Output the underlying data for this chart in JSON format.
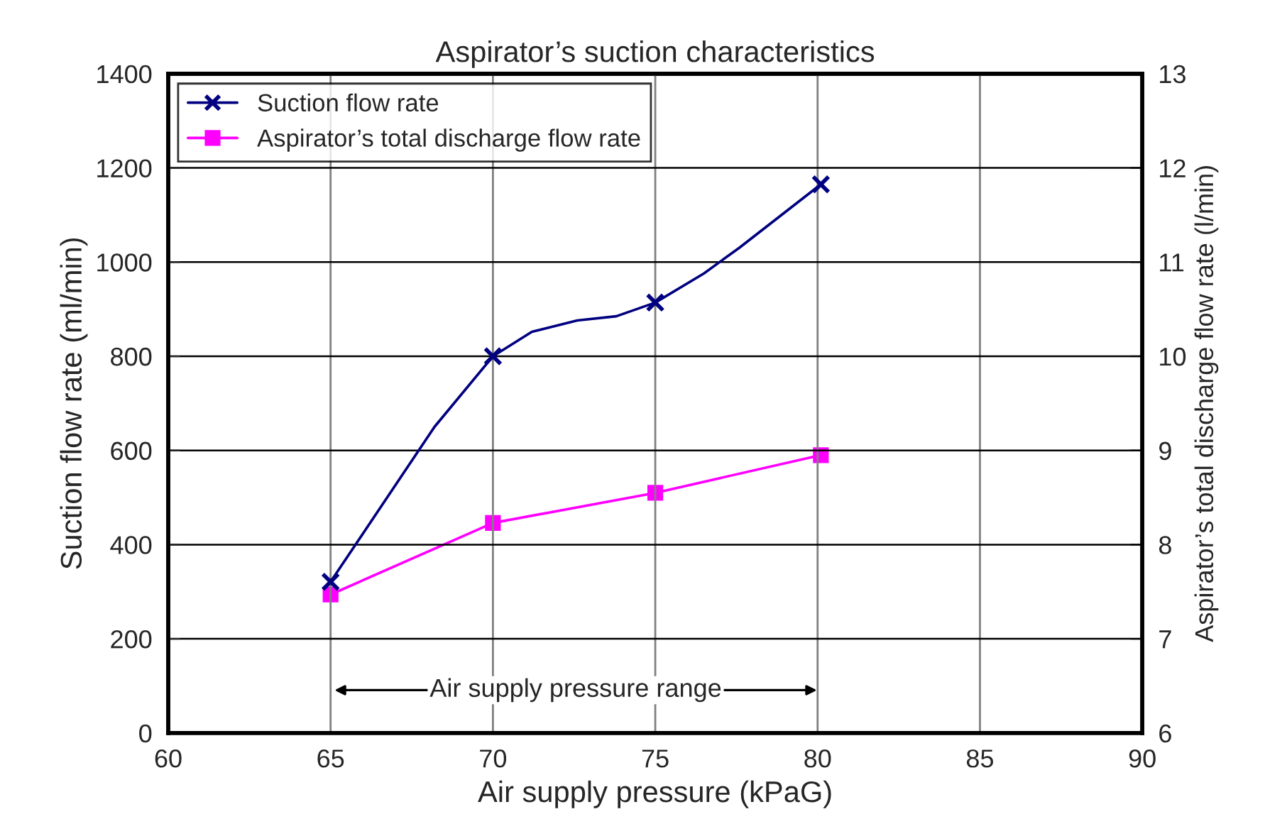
{
  "chart_data": {
    "type": "line",
    "title": "Aspirator’s suction characteristics",
    "xlabel": "Air supply pressure (kPaG)",
    "ylabel": "Suction flow rate (ml/min)",
    "y2label": "Aspirator’s total discharge flow rate (l/min)",
    "series": [
      {
        "color": "#000080",
        "marker": "none",
        "x": [
          65,
          68.2,
          70,
          71.2,
          72.6,
          73.8,
          75,
          76.5,
          77.6,
          80.1
        ],
        "values": [
          321,
          650,
          800,
          852,
          876,
          885,
          914,
          976,
          1031,
          1165
        ]
      },
      {
        "name": "Suction flow rate",
        "type": "scatter",
        "color": "#000080",
        "marker": "cross",
        "x": [
          65,
          70,
          75,
          80.1
        ],
        "values": [
          321,
          800,
          914,
          1165
        ]
      },
      {
        "name": "Aspirator’s total discharge flow rate",
        "type": "line",
        "color": "#ff00ff",
        "marker": "square",
        "axis": "y2",
        "x": [
          65,
          70,
          75,
          80.1
        ],
        "values": [
          7.47,
          8.23,
          8.55,
          8.95
        ]
      }
    ],
    "annotations": [
      "Air supply pressure range"
    ],
    "xlim": [
      60,
      90
    ],
    "xticks": [
      60,
      65,
      70,
      75,
      80,
      85,
      90
    ],
    "ylim": [
      0,
      1400
    ],
    "yticks": [
      0,
      200,
      400,
      600,
      800,
      1000,
      1200,
      1400
    ],
    "y2lim": [
      6,
      13
    ],
    "y2ticks": [
      6,
      7,
      8,
      9,
      10,
      11,
      12,
      13
    ],
    "grid": true,
    "legend": "top left"
  }
}
